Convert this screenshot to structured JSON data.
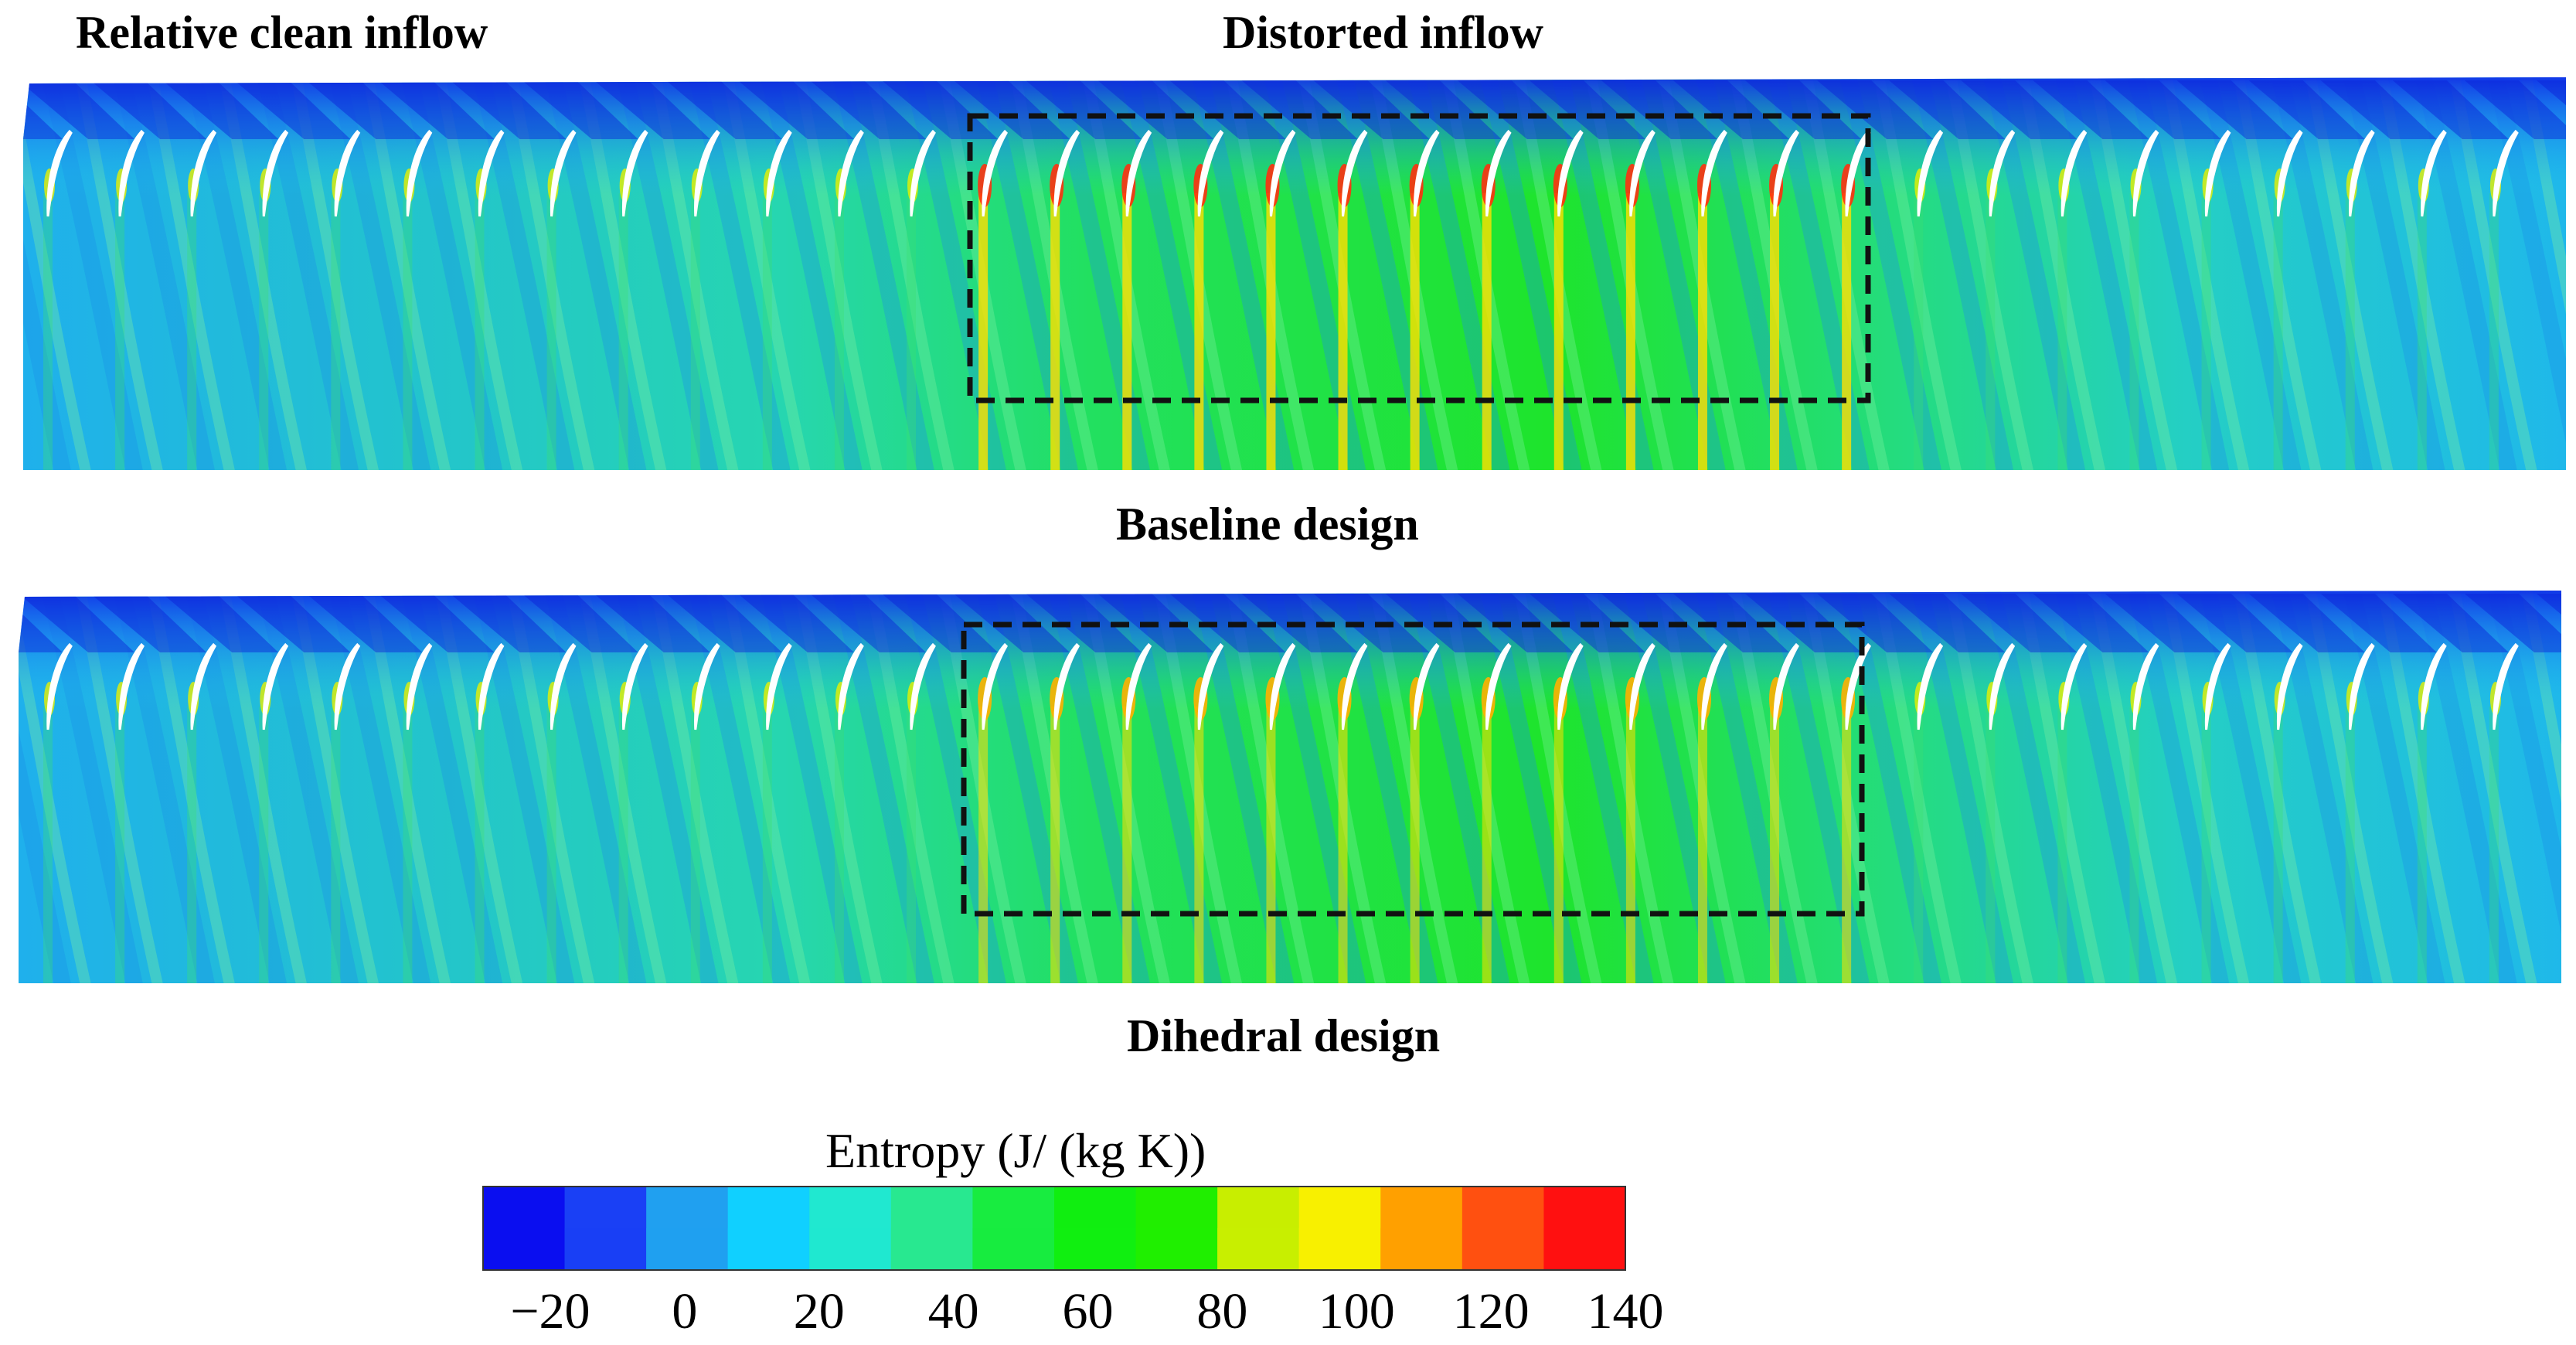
{
  "labels": {
    "clean": "Relative clean inflow",
    "distorted": "Distorted inflow",
    "baseline": "Baseline design",
    "dihedral": "Dihedral design"
  },
  "colorbar": {
    "title": "Entropy (J/ (kg K))",
    "min": -30,
    "max": 140,
    "ticks": [
      "−20",
      "0",
      "20",
      "40",
      "60",
      "80",
      "100",
      "120",
      "140"
    ],
    "tick_values": [
      -20,
      0,
      20,
      40,
      60,
      80,
      100,
      120,
      140
    ],
    "colors": [
      "#0a0ef0",
      "#1a40f5",
      "#20a0f0",
      "#10d0ff",
      "#20e8d0",
      "#28e890",
      "#18ec40",
      "#10ee10",
      "#20ee00",
      "#c8ee00",
      "#f8f000",
      "#ffa000",
      "#ff5010",
      "#ff1010"
    ]
  },
  "panels": [
    {
      "name": "baseline",
      "blade_count": 35,
      "distortion_window": [
        0.375,
        0.725
      ],
      "hot_intensity": 1.0
    },
    {
      "name": "dihedral",
      "blade_count": 35,
      "distortion_window": [
        0.375,
        0.725
      ],
      "hot_intensity": 0.45
    }
  ],
  "colors": {
    "blade": "#ffffff",
    "box": "#111111"
  }
}
